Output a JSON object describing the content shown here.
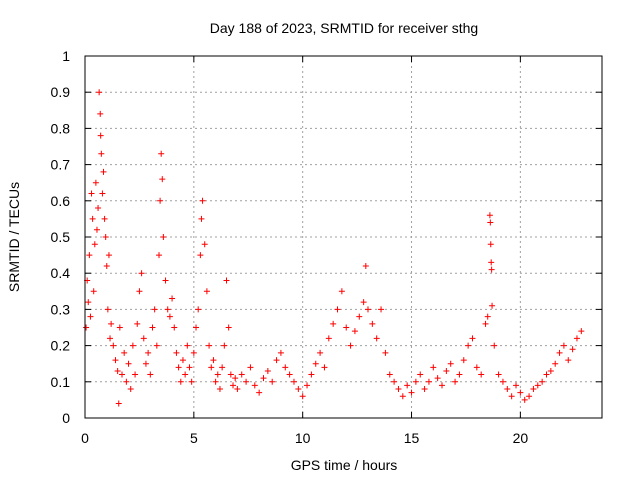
{
  "chart_data": {
    "type": "scatter",
    "title": "Day 188 of 2023, SRMTID for receiver sthg",
    "xlabel": "GPS time / hours",
    "ylabel": "SRMTID / TECUs",
    "xlim": [
      0,
      23.75
    ],
    "ylim": [
      0,
      1
    ],
    "xticks": [
      0,
      5,
      10,
      15,
      20
    ],
    "yticks": [
      0,
      0.1,
      0.2,
      0.3,
      0.4,
      0.5,
      0.6,
      0.7,
      0.8,
      0.9,
      1
    ],
    "xtick_labels": [
      "0",
      "5",
      "10",
      "15",
      "20"
    ],
    "ytick_labels": [
      "0",
      "0.1",
      "0.2",
      "0.3",
      "0.4",
      "0.5",
      "0.6",
      "0.7",
      "0.8",
      "0.9",
      "1"
    ],
    "grid": true,
    "marker": "+",
    "color": "#ff0000",
    "series": [
      {
        "name": "SRMTID",
        "points": [
          [
            0.05,
            0.25
          ],
          [
            0.1,
            0.38
          ],
          [
            0.15,
            0.32
          ],
          [
            0.2,
            0.45
          ],
          [
            0.25,
            0.28
          ],
          [
            0.3,
            0.62
          ],
          [
            0.35,
            0.55
          ],
          [
            0.4,
            0.35
          ],
          [
            0.45,
            0.48
          ],
          [
            0.5,
            0.65
          ],
          [
            0.55,
            0.52
          ],
          [
            0.6,
            0.58
          ],
          [
            0.65,
            0.9
          ],
          [
            0.7,
            0.84
          ],
          [
            0.72,
            0.78
          ],
          [
            0.75,
            0.73
          ],
          [
            0.8,
            0.62
          ],
          [
            0.85,
            0.68
          ],
          [
            0.9,
            0.55
          ],
          [
            0.95,
            0.5
          ],
          [
            1.0,
            0.42
          ],
          [
            1.05,
            0.3
          ],
          [
            1.1,
            0.45
          ],
          [
            1.15,
            0.22
          ],
          [
            1.2,
            0.26
          ],
          [
            1.3,
            0.2
          ],
          [
            1.4,
            0.16
          ],
          [
            1.5,
            0.13
          ],
          [
            1.55,
            0.04
          ],
          [
            1.6,
            0.25
          ],
          [
            1.7,
            0.12
          ],
          [
            1.8,
            0.18
          ],
          [
            1.9,
            0.1
          ],
          [
            2.0,
            0.15
          ],
          [
            2.1,
            0.08
          ],
          [
            2.2,
            0.2
          ],
          [
            2.3,
            0.12
          ],
          [
            2.4,
            0.26
          ],
          [
            2.5,
            0.35
          ],
          [
            2.6,
            0.4
          ],
          [
            2.7,
            0.22
          ],
          [
            2.8,
            0.15
          ],
          [
            2.9,
            0.18
          ],
          [
            3.0,
            0.12
          ],
          [
            3.1,
            0.25
          ],
          [
            3.2,
            0.3
          ],
          [
            3.3,
            0.2
          ],
          [
            3.4,
            0.45
          ],
          [
            3.45,
            0.6
          ],
          [
            3.5,
            0.73
          ],
          [
            3.55,
            0.66
          ],
          [
            3.6,
            0.5
          ],
          [
            3.7,
            0.38
          ],
          [
            3.8,
            0.3
          ],
          [
            3.9,
            0.28
          ],
          [
            4.0,
            0.33
          ],
          [
            4.1,
            0.25
          ],
          [
            4.2,
            0.18
          ],
          [
            4.3,
            0.14
          ],
          [
            4.4,
            0.1
          ],
          [
            4.5,
            0.16
          ],
          [
            4.6,
            0.12
          ],
          [
            4.7,
            0.2
          ],
          [
            4.8,
            0.14
          ],
          [
            4.9,
            0.1
          ],
          [
            5.0,
            0.18
          ],
          [
            5.1,
            0.25
          ],
          [
            5.2,
            0.3
          ],
          [
            5.3,
            0.45
          ],
          [
            5.35,
            0.55
          ],
          [
            5.4,
            0.6
          ],
          [
            5.5,
            0.48
          ],
          [
            5.6,
            0.35
          ],
          [
            5.7,
            0.2
          ],
          [
            5.8,
            0.14
          ],
          [
            5.9,
            0.16
          ],
          [
            6.0,
            0.1
          ],
          [
            6.1,
            0.12
          ],
          [
            6.2,
            0.08
          ],
          [
            6.3,
            0.14
          ],
          [
            6.4,
            0.2
          ],
          [
            6.5,
            0.38
          ],
          [
            6.6,
            0.25
          ],
          [
            6.7,
            0.12
          ],
          [
            6.8,
            0.09
          ],
          [
            6.9,
            0.11
          ],
          [
            7.0,
            0.08
          ],
          [
            7.2,
            0.12
          ],
          [
            7.4,
            0.1
          ],
          [
            7.6,
            0.14
          ],
          [
            7.8,
            0.09
          ],
          [
            8.0,
            0.07
          ],
          [
            8.2,
            0.11
          ],
          [
            8.4,
            0.13
          ],
          [
            8.6,
            0.1
          ],
          [
            8.8,
            0.16
          ],
          [
            9.0,
            0.18
          ],
          [
            9.2,
            0.14
          ],
          [
            9.4,
            0.12
          ],
          [
            9.6,
            0.1
          ],
          [
            9.8,
            0.08
          ],
          [
            10.0,
            0.06
          ],
          [
            10.2,
            0.09
          ],
          [
            10.4,
            0.12
          ],
          [
            10.6,
            0.15
          ],
          [
            10.8,
            0.18
          ],
          [
            11.0,
            0.14
          ],
          [
            11.2,
            0.22
          ],
          [
            11.4,
            0.26
          ],
          [
            11.6,
            0.3
          ],
          [
            11.8,
            0.35
          ],
          [
            12.0,
            0.25
          ],
          [
            12.2,
            0.2
          ],
          [
            12.4,
            0.24
          ],
          [
            12.6,
            0.28
          ],
          [
            12.8,
            0.32
          ],
          [
            12.9,
            0.42
          ],
          [
            13.0,
            0.3
          ],
          [
            13.2,
            0.26
          ],
          [
            13.4,
            0.22
          ],
          [
            13.6,
            0.3
          ],
          [
            13.8,
            0.18
          ],
          [
            14.0,
            0.12
          ],
          [
            14.2,
            0.1
          ],
          [
            14.4,
            0.08
          ],
          [
            14.6,
            0.06
          ],
          [
            14.8,
            0.09
          ],
          [
            15.0,
            0.07
          ],
          [
            15.2,
            0.1
          ],
          [
            15.4,
            0.12
          ],
          [
            15.6,
            0.08
          ],
          [
            15.8,
            0.1
          ],
          [
            16.0,
            0.14
          ],
          [
            16.2,
            0.11
          ],
          [
            16.4,
            0.09
          ],
          [
            16.6,
            0.13
          ],
          [
            16.8,
            0.15
          ],
          [
            17.0,
            0.1
          ],
          [
            17.2,
            0.12
          ],
          [
            17.4,
            0.16
          ],
          [
            17.6,
            0.2
          ],
          [
            17.8,
            0.22
          ],
          [
            18.0,
            0.14
          ],
          [
            18.2,
            0.12
          ],
          [
            18.4,
            0.26
          ],
          [
            18.5,
            0.28
          ],
          [
            18.6,
            0.56
          ],
          [
            18.62,
            0.54
          ],
          [
            18.64,
            0.48
          ],
          [
            18.66,
            0.43
          ],
          [
            18.68,
            0.41
          ],
          [
            18.7,
            0.31
          ],
          [
            18.8,
            0.2
          ],
          [
            19.0,
            0.12
          ],
          [
            19.2,
            0.1
          ],
          [
            19.4,
            0.08
          ],
          [
            19.6,
            0.06
          ],
          [
            19.8,
            0.09
          ],
          [
            20.0,
            0.07
          ],
          [
            20.2,
            0.05
          ],
          [
            20.4,
            0.06
          ],
          [
            20.6,
            0.08
          ],
          [
            20.8,
            0.09
          ],
          [
            21.0,
            0.1
          ],
          [
            21.2,
            0.12
          ],
          [
            21.4,
            0.13
          ],
          [
            21.6,
            0.15
          ],
          [
            21.8,
            0.18
          ],
          [
            22.0,
            0.2
          ],
          [
            22.2,
            0.16
          ],
          [
            22.4,
            0.19
          ],
          [
            22.6,
            0.22
          ],
          [
            22.8,
            0.24
          ]
        ]
      }
    ]
  }
}
